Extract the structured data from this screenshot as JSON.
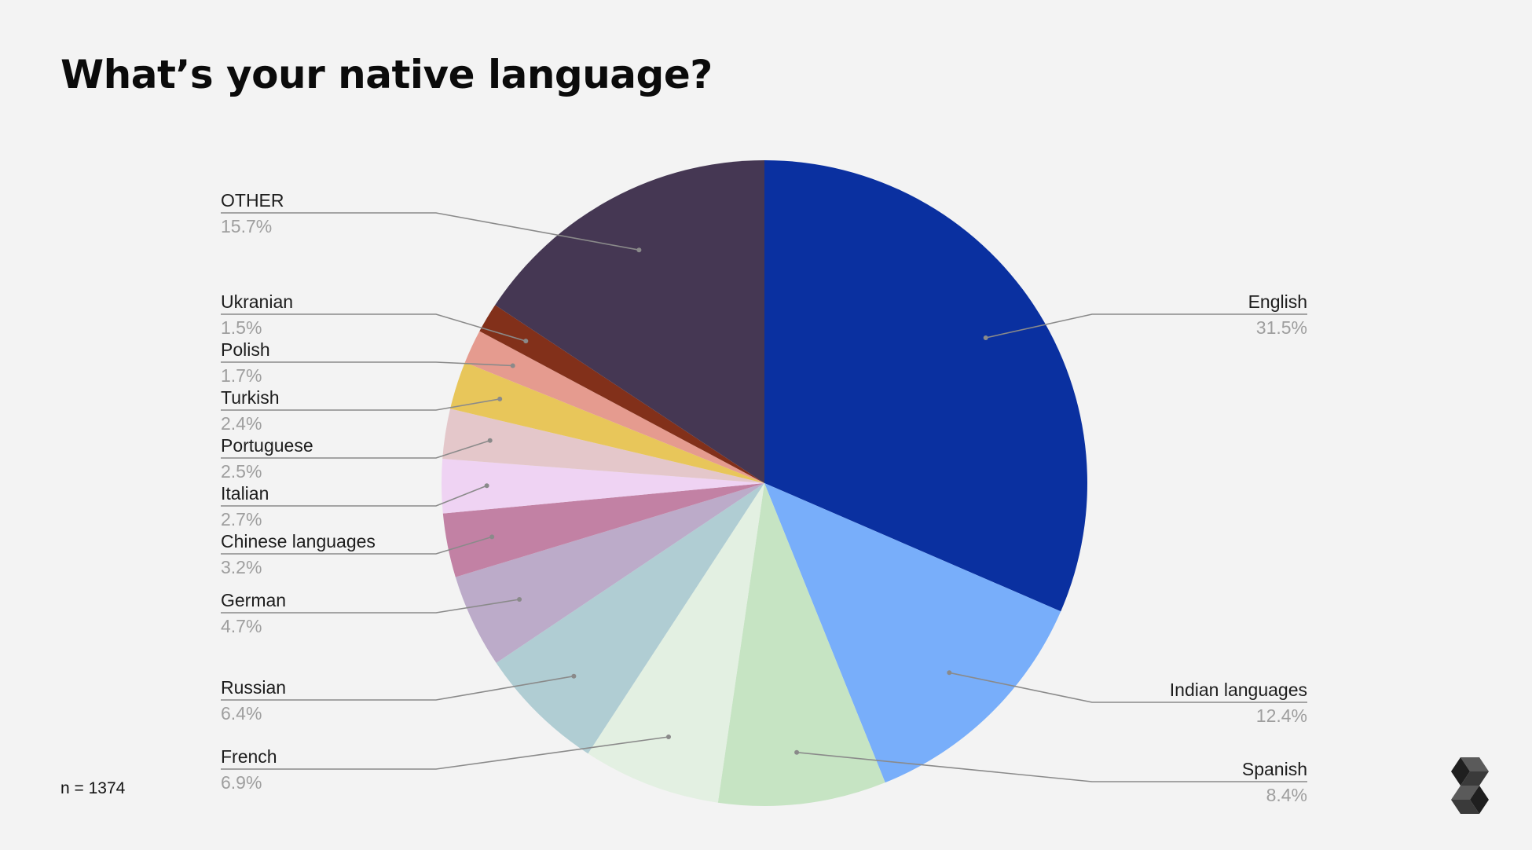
{
  "title": "What’s your native language?",
  "sample_note": "n = 1374",
  "chart_data": {
    "type": "pie",
    "title": "What’s your native language?",
    "start": "12 o'clock",
    "direction": "clockwise",
    "slices": [
      {
        "name": "English",
        "value": 31.5,
        "label": "31.5%",
        "color": "#0a30a0"
      },
      {
        "name": "Indian languages",
        "value": 12.4,
        "label": "12.4%",
        "color": "#78aefa"
      },
      {
        "name": "Spanish",
        "value": 8.4,
        "label": "8.4%",
        "color": "#c6e4c3"
      },
      {
        "name": "French",
        "value": 6.9,
        "label": "6.9%",
        "color": "#e3f0e2"
      },
      {
        "name": "Russian",
        "value": 6.4,
        "label": "6.4%",
        "color": "#b0cdd3"
      },
      {
        "name": "German",
        "value": 4.7,
        "label": "4.7%",
        "color": "#bcabc9"
      },
      {
        "name": "Chinese languages",
        "value": 3.2,
        "label": "3.2%",
        "color": "#c281a4"
      },
      {
        "name": "Italian",
        "value": 2.7,
        "label": "2.7%",
        "color": "#efd3f3"
      },
      {
        "name": "Portuguese",
        "value": 2.5,
        "label": "2.5%",
        "color": "#e4c7ca"
      },
      {
        "name": "Turkish",
        "value": 2.4,
        "label": "2.4%",
        "color": "#e8c65a"
      },
      {
        "name": "Polish",
        "value": 1.7,
        "label": "1.7%",
        "color": "#e59b8f"
      },
      {
        "name": "Ukranian",
        "value": 1.5,
        "label": "1.5%",
        "color": "#82301a"
      },
      {
        "name": "OTHER",
        "value": 15.7,
        "label": "15.7%",
        "color": "#453753"
      }
    ]
  }
}
